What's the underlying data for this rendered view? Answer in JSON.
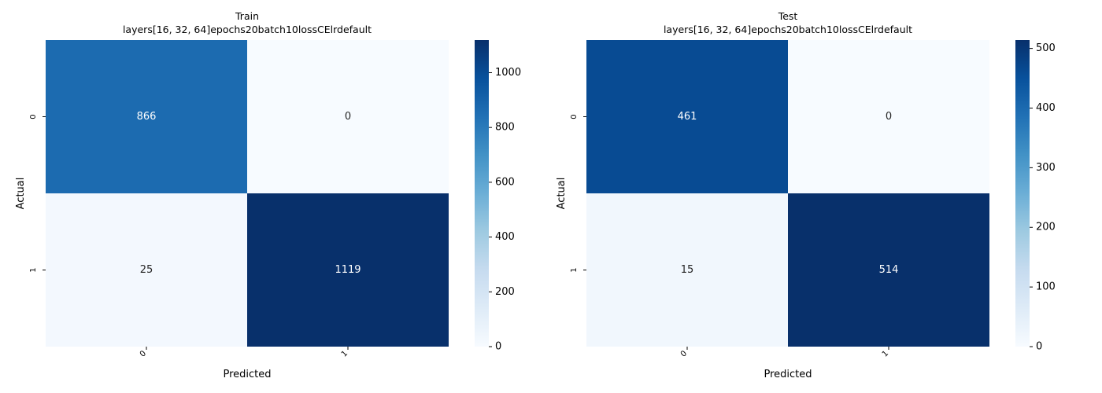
{
  "colormap_stops": [
    "#f7fbff",
    "#deebf7",
    "#c6dbef",
    "#9ecae1",
    "#6baed6",
    "#4292c6",
    "#2171b5",
    "#08519c",
    "#08306b"
  ],
  "chart_data": [
    {
      "type": "heatmap",
      "title": "Train",
      "subtitle": "layers[16, 32, 64]epochs20batch10lossCElrdefault",
      "xlabel": "Predicted",
      "ylabel": "Actual",
      "x_categories": [
        "0",
        "1"
      ],
      "y_categories": [
        "0",
        "1"
      ],
      "values": [
        [
          866,
          0
        ],
        [
          25,
          1119
        ]
      ],
      "colorbar": {
        "min": 0,
        "max": 1119,
        "ticks": [
          "0",
          "200",
          "400",
          "600",
          "800",
          "1000"
        ]
      }
    },
    {
      "type": "heatmap",
      "title": "Test",
      "subtitle": "layers[16, 32, 64]epochs20batch10lossCElrdefault",
      "xlabel": "Predicted",
      "ylabel": "Actual",
      "x_categories": [
        "0",
        "1"
      ],
      "y_categories": [
        "0",
        "1"
      ],
      "values": [
        [
          461,
          0
        ],
        [
          15,
          514
        ]
      ],
      "colorbar": {
        "min": 0,
        "max": 514,
        "ticks": [
          "0",
          "100",
          "200",
          "300",
          "400",
          "500"
        ]
      }
    }
  ]
}
